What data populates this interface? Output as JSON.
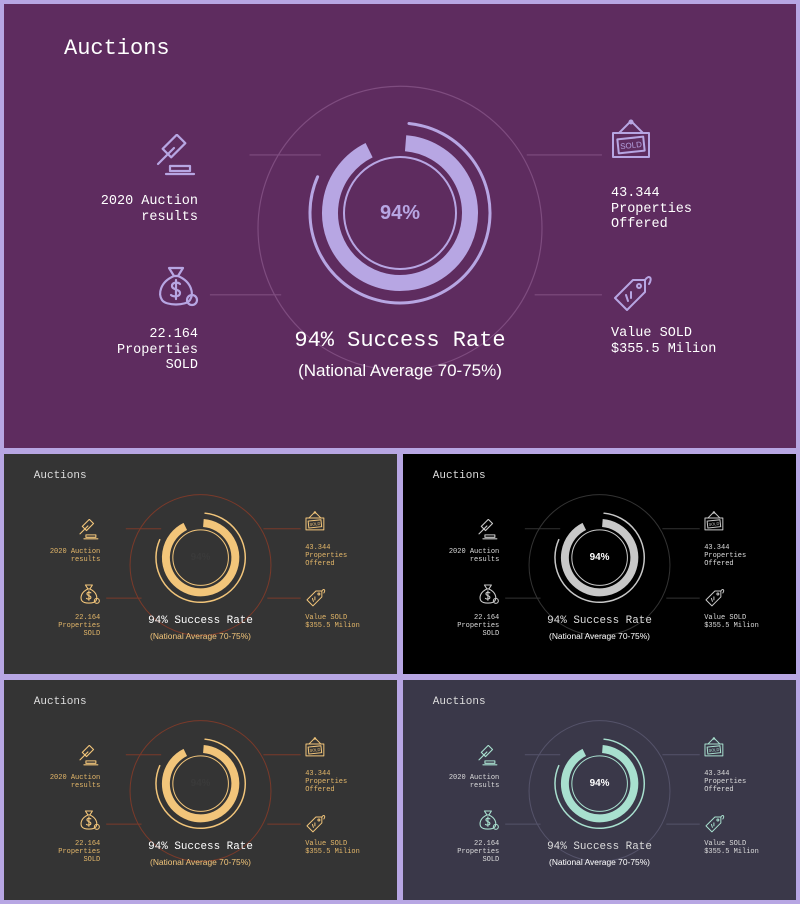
{
  "title": "Auctions",
  "gauge": {
    "percent_label": "94%",
    "fraction": 0.94
  },
  "headline": {
    "rate": "94% Success Rate",
    "sub": "(National Average 70-75%)"
  },
  "stats": {
    "results": {
      "line1": "2020 Auction",
      "line2": "results"
    },
    "sold": {
      "line1": "22.164",
      "line2": "Properties",
      "line3": "SOLD"
    },
    "offered": {
      "line1": "43.344",
      "line2": "Properties",
      "line3": "Offered"
    },
    "value": {
      "line1": "Value SOLD",
      "line2": "$355.5 Milion"
    }
  },
  "icons": [
    "gavel-icon",
    "money-bag-icon",
    "sold-sign-icon",
    "price-tag-icon"
  ],
  "themes": [
    {
      "name": "purple",
      "bg": "#5e2c5f",
      "text": "#ffffff",
      "accent": "#b7a6e3",
      "pct": "#b7a6e3",
      "sub": "#ffffff",
      "line": "#7e4c7f"
    },
    {
      "name": "charcoal-gold",
      "bg": "#343434",
      "text": "#e5b86a",
      "accent": "#f2c57a",
      "pct": "#3a3a3a",
      "sub": "#f2c57a",
      "line": "#7a3a2a",
      "titleColor": "#dddddd",
      "rateColor": "#ffffff"
    },
    {
      "name": "black",
      "bg": "#000000",
      "text": "#dddddd",
      "accent": "#c8c8c8",
      "pct": "#ffffff",
      "sub": "#ffffff",
      "line": "#333333"
    },
    {
      "name": "charcoal-gold-2",
      "bg": "#343434",
      "text": "#e5b86a",
      "accent": "#f2c57a",
      "pct": "#3a3a3a",
      "sub": "#f2c57a",
      "line": "#7a3a2a",
      "titleColor": "#dddddd",
      "rateColor": "#ffffff"
    },
    {
      "name": "slate-mint",
      "bg": "#3a3849",
      "text": "#dddddd",
      "accent": "#a8e0cf",
      "pct": "#ffffff",
      "sub": "#ffffff",
      "line": "#55536a"
    }
  ]
}
